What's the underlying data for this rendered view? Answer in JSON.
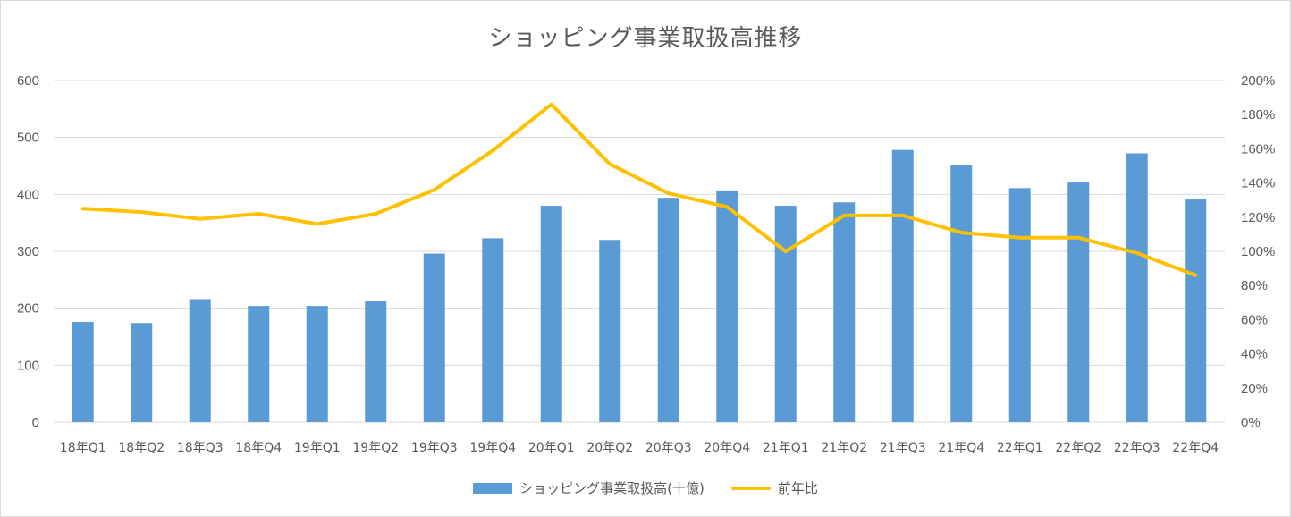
{
  "colors": {
    "bar": "#5b9bd5",
    "line": "#ffc000",
    "grid": "#d9d9d9",
    "text": "#595959"
  },
  "chart_data": {
    "type": "bar",
    "title": "ショッピング事業取扱高推移",
    "categories": [
      "18年Q1",
      "18年Q2",
      "18年Q3",
      "18年Q4",
      "19年Q1",
      "19年Q2",
      "19年Q3",
      "19年Q4",
      "20年Q1",
      "20年Q2",
      "20年Q3",
      "20年Q4",
      "21年Q1",
      "21年Q2",
      "21年Q3",
      "21年Q4",
      "22年Q1",
      "22年Q2",
      "22年Q3",
      "22年Q4"
    ],
    "series": [
      {
        "name": "ショッピング事業取扱高(十億)",
        "type": "bar",
        "axis": "left",
        "values": [
          176,
          174,
          216,
          204,
          204,
          212,
          296,
          323,
          380,
          320,
          394,
          407,
          380,
          386,
          478,
          451,
          411,
          421,
          472,
          391
        ]
      },
      {
        "name": "前年比",
        "type": "line",
        "axis": "right",
        "unit": "%",
        "values": [
          125,
          123,
          119,
          122,
          116,
          122,
          136,
          159,
          186,
          151,
          134,
          126,
          100,
          121,
          121,
          111,
          108,
          108,
          99,
          86
        ]
      }
    ],
    "ylim_left": [
      0,
      600
    ],
    "yticks_left": [
      0,
      100,
      200,
      300,
      400,
      500,
      600
    ],
    "ylim_right": [
      0,
      200
    ],
    "yticks_right": [
      "0%",
      "20%",
      "40%",
      "60%",
      "80%",
      "100%",
      "120%",
      "140%",
      "160%",
      "180%",
      "200%"
    ],
    "grid": true,
    "legend_position": "bottom"
  }
}
